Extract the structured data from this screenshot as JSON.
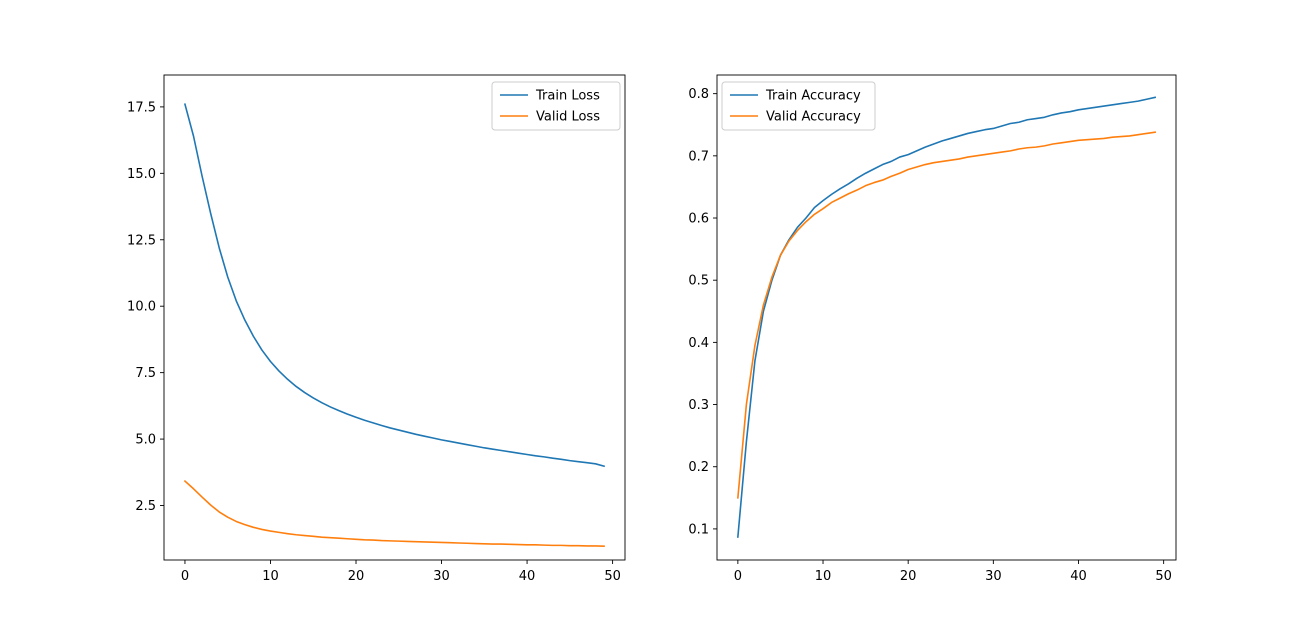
{
  "chart_data": [
    {
      "type": "line",
      "title": "",
      "xlabel": "",
      "ylabel": "",
      "xlim": [
        -2.45,
        51.45
      ],
      "ylim": [
        0.45,
        18.7
      ],
      "xticks": [
        0,
        10,
        20,
        30,
        40,
        50
      ],
      "xtick_labels": [
        "0",
        "10",
        "20",
        "30",
        "40",
        "50"
      ],
      "yticks": [
        2.5,
        5.0,
        7.5,
        10.0,
        12.5,
        15.0,
        17.5
      ],
      "ytick_labels": [
        "2.5",
        "5.0",
        "7.5",
        "10.0",
        "12.5",
        "15.0",
        "17.5"
      ],
      "grid": false,
      "legend": "top-right",
      "x": [
        0,
        1,
        2,
        3,
        4,
        5,
        6,
        7,
        8,
        9,
        10,
        11,
        12,
        13,
        14,
        15,
        16,
        17,
        18,
        19,
        20,
        21,
        22,
        23,
        24,
        25,
        26,
        27,
        28,
        29,
        30,
        31,
        32,
        33,
        34,
        35,
        36,
        37,
        38,
        39,
        40,
        41,
        42,
        43,
        44,
        45,
        46,
        47,
        48,
        49
      ],
      "series": [
        {
          "name": "Train Loss",
          "color": "#1f77b4",
          "values": [
            17.6,
            16.4,
            14.9,
            13.5,
            12.2,
            11.1,
            10.2,
            9.48,
            8.87,
            8.35,
            7.92,
            7.56,
            7.25,
            6.98,
            6.75,
            6.55,
            6.37,
            6.21,
            6.07,
            5.94,
            5.82,
            5.71,
            5.61,
            5.51,
            5.42,
            5.34,
            5.26,
            5.18,
            5.11,
            5.04,
            4.97,
            4.91,
            4.85,
            4.79,
            4.73,
            4.67,
            4.62,
            4.57,
            4.52,
            4.47,
            4.42,
            4.37,
            4.33,
            4.28,
            4.24,
            4.19,
            4.15,
            4.11,
            4.07,
            3.98
          ]
        },
        {
          "name": "Valid Loss",
          "color": "#ff7f0e",
          "values": [
            3.42,
            3.13,
            2.82,
            2.52,
            2.26,
            2.06,
            1.9,
            1.78,
            1.68,
            1.6,
            1.54,
            1.49,
            1.44,
            1.4,
            1.37,
            1.34,
            1.31,
            1.29,
            1.27,
            1.25,
            1.23,
            1.21,
            1.2,
            1.18,
            1.17,
            1.16,
            1.15,
            1.14,
            1.13,
            1.12,
            1.11,
            1.1,
            1.09,
            1.08,
            1.07,
            1.06,
            1.05,
            1.05,
            1.04,
            1.03,
            1.02,
            1.02,
            1.01,
            1.0,
            1.0,
            0.99,
            0.99,
            0.98,
            0.98,
            0.97
          ]
        }
      ]
    },
    {
      "type": "line",
      "title": "",
      "xlabel": "",
      "ylabel": "",
      "xlim": [
        -2.45,
        51.45
      ],
      "ylim": [
        0.05,
        0.83
      ],
      "xticks": [
        0,
        10,
        20,
        30,
        40,
        50
      ],
      "xtick_labels": [
        "0",
        "10",
        "20",
        "30",
        "40",
        "50"
      ],
      "yticks": [
        0.1,
        0.2,
        0.3,
        0.4,
        0.5,
        0.6,
        0.7,
        0.8
      ],
      "ytick_labels": [
        "0.1",
        "0.2",
        "0.3",
        "0.4",
        "0.5",
        "0.6",
        "0.7",
        "0.8"
      ],
      "grid": false,
      "legend": "top-left",
      "x": [
        0,
        1,
        2,
        3,
        4,
        5,
        6,
        7,
        8,
        9,
        10,
        11,
        12,
        13,
        14,
        15,
        16,
        17,
        18,
        19,
        20,
        21,
        22,
        23,
        24,
        25,
        26,
        27,
        28,
        29,
        30,
        31,
        32,
        33,
        34,
        35,
        36,
        37,
        38,
        39,
        40,
        41,
        42,
        43,
        44,
        45,
        46,
        47,
        48,
        49
      ],
      "series": [
        {
          "name": "Train Accuracy",
          "color": "#1f77b4",
          "values": [
            0.087,
            0.24,
            0.37,
            0.45,
            0.5,
            0.54,
            0.565,
            0.585,
            0.6,
            0.617,
            0.628,
            0.638,
            0.647,
            0.655,
            0.664,
            0.672,
            0.679,
            0.686,
            0.691,
            0.698,
            0.702,
            0.708,
            0.714,
            0.719,
            0.724,
            0.728,
            0.732,
            0.736,
            0.739,
            0.742,
            0.744,
            0.748,
            0.752,
            0.754,
            0.758,
            0.76,
            0.762,
            0.766,
            0.769,
            0.771,
            0.774,
            0.776,
            0.778,
            0.78,
            0.782,
            0.784,
            0.786,
            0.788,
            0.791,
            0.794
          ]
        },
        {
          "name": "Valid Accuracy",
          "color": "#ff7f0e",
          "values": [
            0.15,
            0.3,
            0.395,
            0.46,
            0.505,
            0.54,
            0.563,
            0.58,
            0.594,
            0.606,
            0.615,
            0.625,
            0.632,
            0.639,
            0.645,
            0.652,
            0.657,
            0.661,
            0.667,
            0.672,
            0.678,
            0.682,
            0.686,
            0.689,
            0.691,
            0.693,
            0.695,
            0.698,
            0.7,
            0.702,
            0.704,
            0.706,
            0.708,
            0.711,
            0.713,
            0.714,
            0.716,
            0.719,
            0.721,
            0.723,
            0.725,
            0.726,
            0.727,
            0.728,
            0.73,
            0.731,
            0.732,
            0.734,
            0.736,
            0.738
          ]
        }
      ]
    }
  ]
}
